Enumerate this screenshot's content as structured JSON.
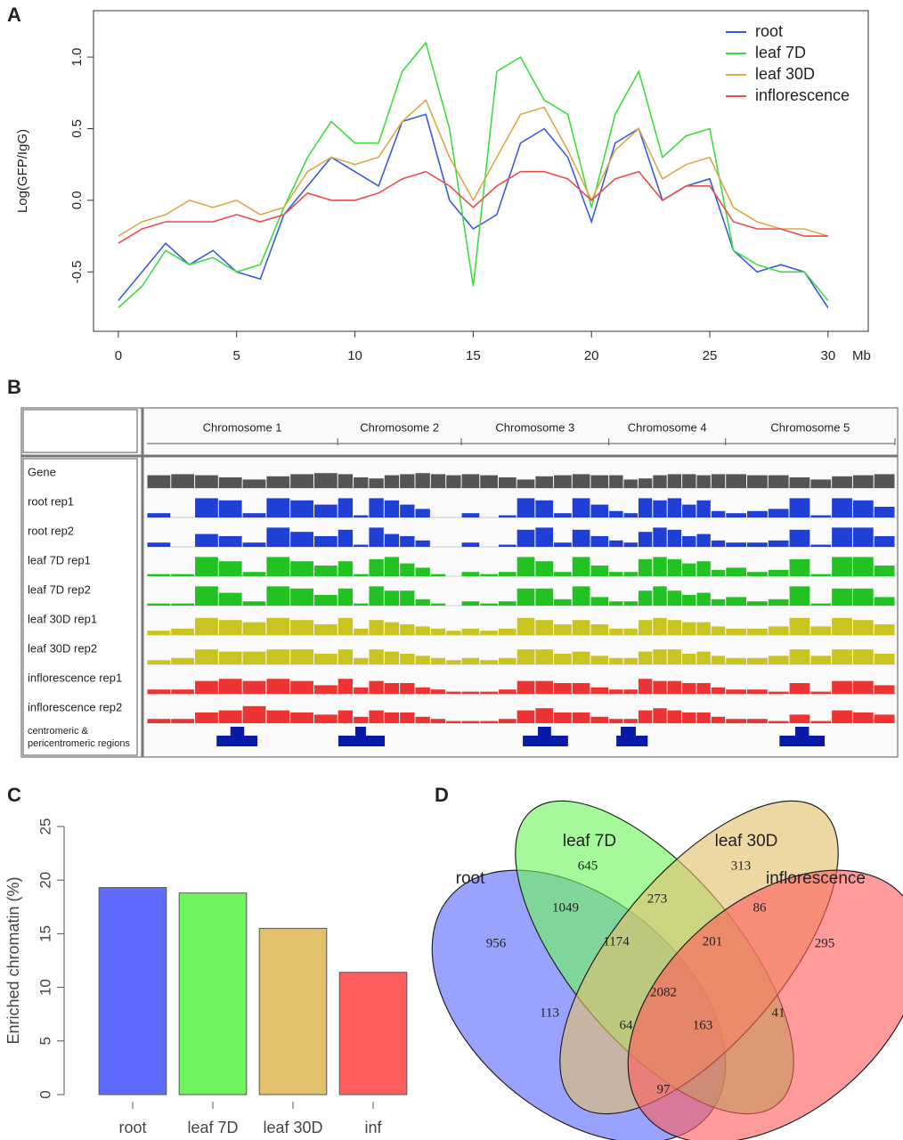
{
  "chart_data": [
    {
      "panel": "A",
      "type": "line",
      "y_label": "Log(GFP/IgG)",
      "x_label": "Mb",
      "x": [
        0,
        1,
        2,
        3,
        4,
        5,
        6,
        7,
        8,
        9,
        10,
        11,
        12,
        13,
        14,
        15,
        16,
        17,
        18,
        19,
        20,
        21,
        22,
        23,
        24,
        25,
        26,
        27,
        28,
        29,
        30
      ],
      "xlim": [
        -1.05,
        31.7
      ],
      "ylim": [
        -0.915,
        1.324
      ],
      "xticks": [
        0,
        5,
        10,
        15,
        20,
        25,
        30
      ],
      "yticks": [
        -0.5,
        {
          "value": 0,
          "label": "0.0"
        },
        0.5,
        {
          "value": 1,
          "label": "1.0"
        }
      ],
      "legend": "top-right",
      "series": [
        {
          "name": "root",
          "color": "#3a5bd9",
          "values": [
            -0.7,
            -0.5,
            -0.3,
            -0.45,
            -0.35,
            -0.5,
            -0.55,
            -0.1,
            0.1,
            0.3,
            0.2,
            0.1,
            0.55,
            0.6,
            0.0,
            -0.2,
            -0.1,
            0.4,
            0.5,
            0.3,
            -0.15,
            0.4,
            0.5,
            0.0,
            0.1,
            0.15,
            -0.35,
            -0.5,
            -0.45,
            -0.5,
            -0.75
          ]
        },
        {
          "name": "leaf 7D",
          "color": "#3fdc3f",
          "values": [
            -0.75,
            -0.6,
            -0.35,
            -0.45,
            -0.4,
            -0.5,
            -0.45,
            -0.05,
            0.3,
            0.55,
            0.4,
            0.4,
            0.9,
            1.1,
            0.5,
            -0.6,
            0.9,
            1.0,
            0.7,
            0.6,
            -0.05,
            0.6,
            0.9,
            0.3,
            0.45,
            0.5,
            -0.35,
            -0.45,
            -0.5,
            -0.5,
            -0.7
          ]
        },
        {
          "name": "leaf 30D",
          "color": "#d9a94a",
          "values": [
            -0.25,
            -0.15,
            -0.1,
            0.0,
            -0.05,
            0.0,
            -0.1,
            -0.05,
            0.2,
            0.3,
            0.25,
            0.3,
            0.55,
            0.7,
            0.3,
            0.0,
            0.3,
            0.6,
            0.65,
            0.35,
            0.0,
            0.35,
            0.5,
            0.15,
            0.25,
            0.3,
            -0.05,
            -0.15,
            -0.2,
            -0.2,
            -0.25
          ]
        },
        {
          "name": "inflorescence",
          "color": "#ee4b4b",
          "values": [
            -0.3,
            -0.2,
            -0.15,
            -0.15,
            -0.15,
            -0.1,
            -0.15,
            -0.1,
            0.05,
            0.0,
            0.0,
            0.05,
            0.15,
            0.2,
            0.1,
            -0.05,
            0.1,
            0.2,
            0.2,
            0.15,
            0.0,
            0.15,
            0.2,
            0.0,
            0.1,
            0.1,
            -0.15,
            -0.2,
            -0.2,
            -0.25,
            -0.25
          ]
        }
      ]
    },
    {
      "panel": "B",
      "type": "tracks",
      "chromosomes": [
        "Chromosome 1",
        "Chromosome 2",
        "Chromosome 3",
        "Chromosome 4",
        "Chromosome 5"
      ],
      "chromosome_sizes": [
        30.4,
        19.7,
        23.5,
        18.6,
        27.0
      ],
      "tracks": [
        {
          "name": "Gene",
          "color": "#555555",
          "values": [
            0.6,
            0.65,
            0.6,
            0.5,
            0.4,
            0.55,
            0.65,
            0.7,
            0.65,
            0.5,
            0.45,
            0.6,
            0.65,
            0.7,
            0.65,
            0.6,
            0.65,
            0.6,
            0.5,
            0.4,
            0.55,
            0.6,
            0.65,
            0.6,
            0.6,
            0.4,
            0.45,
            0.6,
            0.65,
            0.65,
            0.6,
            0.65,
            0.65,
            0.6,
            0.6,
            0.5,
            0.4,
            0.55,
            0.6,
            0.65
          ]
        },
        {
          "name": "root rep1",
          "color": "#1f3fd6",
          "values": [
            0.2,
            0.0,
            0.9,
            0.8,
            0.2,
            0.9,
            0.8,
            0.6,
            0.9,
            0.1,
            0.9,
            0.8,
            0.6,
            0.4,
            0.0,
            0.0,
            0.2,
            0.0,
            0.1,
            0.9,
            0.8,
            0.2,
            0.9,
            0.6,
            0.3,
            0.2,
            0.9,
            0.8,
            0.9,
            0.6,
            0.8,
            0.3,
            0.2,
            0.3,
            0.4,
            0.9,
            0.1,
            0.9,
            0.8,
            0.5
          ]
        },
        {
          "name": "root rep2",
          "color": "#1f3fd6",
          "values": [
            0.2,
            0.0,
            0.6,
            0.5,
            0.2,
            0.9,
            0.7,
            0.5,
            0.8,
            0.1,
            0.9,
            0.6,
            0.5,
            0.3,
            0.0,
            0.0,
            0.2,
            0.0,
            0.1,
            0.8,
            0.9,
            0.2,
            0.8,
            0.5,
            0.3,
            0.2,
            0.7,
            0.9,
            0.8,
            0.5,
            0.6,
            0.3,
            0.2,
            0.2,
            0.3,
            0.8,
            0.1,
            0.9,
            0.9,
            0.5
          ]
        },
        {
          "name": "leaf 7D rep1",
          "color": "#22c222",
          "values": [
            0.1,
            0.1,
            0.9,
            0.7,
            0.2,
            0.9,
            0.7,
            0.5,
            0.7,
            0.1,
            0.8,
            0.9,
            0.6,
            0.4,
            0.1,
            0.0,
            0.2,
            0.1,
            0.2,
            0.9,
            0.7,
            0.2,
            0.9,
            0.5,
            0.2,
            0.2,
            0.8,
            0.9,
            0.8,
            0.6,
            0.7,
            0.3,
            0.4,
            0.2,
            0.3,
            0.8,
            0.1,
            0.9,
            0.9,
            0.5
          ]
        },
        {
          "name": "leaf 7D rep2",
          "color": "#22c222",
          "values": [
            0.1,
            0.1,
            0.9,
            0.6,
            0.2,
            0.9,
            0.8,
            0.5,
            0.8,
            0.1,
            0.9,
            0.7,
            0.7,
            0.3,
            0.1,
            0.0,
            0.2,
            0.1,
            0.2,
            0.8,
            0.8,
            0.3,
            0.9,
            0.4,
            0.2,
            0.2,
            0.7,
            0.9,
            0.7,
            0.5,
            0.6,
            0.3,
            0.4,
            0.2,
            0.3,
            0.9,
            0.1,
            0.8,
            0.8,
            0.4
          ]
        },
        {
          "name": "leaf 30D rep1",
          "color": "#c9c41f",
          "values": [
            0.2,
            0.3,
            0.8,
            0.7,
            0.6,
            0.8,
            0.7,
            0.5,
            0.8,
            0.3,
            0.7,
            0.6,
            0.5,
            0.4,
            0.3,
            0.2,
            0.3,
            0.2,
            0.3,
            0.8,
            0.7,
            0.5,
            0.7,
            0.5,
            0.3,
            0.3,
            0.7,
            0.8,
            0.7,
            0.6,
            0.6,
            0.4,
            0.3,
            0.3,
            0.4,
            0.8,
            0.4,
            0.8,
            0.7,
            0.5
          ]
        },
        {
          "name": "leaf 30D rep2",
          "color": "#c9c41f",
          "values": [
            0.2,
            0.3,
            0.7,
            0.6,
            0.6,
            0.7,
            0.7,
            0.5,
            0.7,
            0.3,
            0.7,
            0.6,
            0.5,
            0.4,
            0.3,
            0.2,
            0.3,
            0.2,
            0.3,
            0.7,
            0.7,
            0.5,
            0.6,
            0.4,
            0.3,
            0.3,
            0.6,
            0.7,
            0.7,
            0.5,
            0.6,
            0.4,
            0.3,
            0.3,
            0.4,
            0.7,
            0.4,
            0.7,
            0.7,
            0.5
          ]
        },
        {
          "name": "inflorescence rep1",
          "color": "#ee3333",
          "values": [
            0.2,
            0.2,
            0.6,
            0.7,
            0.6,
            0.7,
            0.6,
            0.4,
            0.7,
            0.3,
            0.6,
            0.5,
            0.5,
            0.3,
            0.2,
            0.1,
            0.1,
            0.1,
            0.2,
            0.6,
            0.6,
            0.5,
            0.5,
            0.3,
            0.2,
            0.2,
            0.7,
            0.6,
            0.6,
            0.5,
            0.5,
            0.3,
            0.2,
            0.2,
            0.1,
            0.5,
            0.1,
            0.6,
            0.6,
            0.4
          ]
        },
        {
          "name": "inflorescence rep2",
          "color": "#ee3333",
          "values": [
            0.2,
            0.2,
            0.5,
            0.6,
            0.8,
            0.6,
            0.5,
            0.4,
            0.6,
            0.3,
            0.6,
            0.5,
            0.5,
            0.3,
            0.2,
            0.1,
            0.1,
            0.1,
            0.2,
            0.6,
            0.7,
            0.5,
            0.5,
            0.3,
            0.2,
            0.2,
            0.6,
            0.7,
            0.6,
            0.5,
            0.5,
            0.3,
            0.2,
            0.2,
            0.1,
            0.4,
            0.1,
            0.6,
            0.5,
            0.4
          ]
        }
      ],
      "region_label": [
        "centromeric &",
        "pericentromeric regions"
      ],
      "region_color": "#0a1aa8",
      "pericentromeric": [
        [
          11.1,
          17.6
        ],
        [
          0.1,
          7.5
        ],
        [
          9.8,
          17.0
        ],
        [
          1.2,
          6.2
        ],
        [
          8.6,
          15.8
        ]
      ],
      "centromeric": [
        [
          13.3,
          15.5
        ],
        [
          2.8,
          4.5
        ],
        [
          12.2,
          14.3
        ],
        [
          1.9,
          4.3
        ],
        [
          11.1,
          13.3
        ]
      ]
    },
    {
      "panel": "C",
      "type": "bar",
      "y_label": "Enriched chromatin (%)",
      "categories": [
        "root",
        "leaf 7D",
        "leaf 30D",
        "inf"
      ],
      "values": [
        19.3,
        18.8,
        15.5,
        11.4
      ],
      "colors": [
        "#5f6bff",
        "#6ef55e",
        "#e2c06c",
        "#ff5e5e"
      ],
      "ylim": [
        0,
        25
      ],
      "yticks": [
        0,
        5,
        10,
        15,
        20,
        25
      ]
    },
    {
      "panel": "D",
      "type": "venn",
      "sets": [
        {
          "name": "root",
          "color": "#5a6bff"
        },
        {
          "name": "leaf 7D",
          "color": "#6ef55e"
        },
        {
          "name": "leaf 30D",
          "color": "#e2c06c"
        },
        {
          "name": "inflorescence",
          "color": "#ff5e5e"
        }
      ],
      "values": [
        956,
        645,
        313,
        295,
        1049,
        273,
        86,
        1174,
        201,
        2082,
        113,
        64,
        163,
        41,
        97
      ]
    }
  ]
}
